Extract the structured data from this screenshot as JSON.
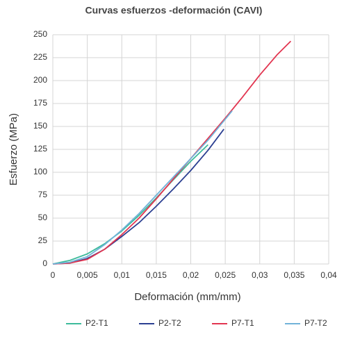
{
  "chart_data": {
    "type": "line",
    "title": "Curvas esfuerzos -deformación (CAVI)",
    "x_label": "Deformación (mm/mm)",
    "y_label": "Esfuerzo (MPa)",
    "xlim": [
      0,
      0.04
    ],
    "ylim": [
      0,
      250
    ],
    "xticks": [
      0,
      {
        "value": 0.005,
        "label": "0,005"
      },
      {
        "value": 0.01,
        "label": "0,01"
      },
      {
        "value": 0.015,
        "label": "0,015"
      },
      {
        "value": 0.02,
        "label": "0,02"
      },
      {
        "value": 0.025,
        "label": "0,025"
      },
      {
        "value": 0.03,
        "label": "0,03"
      },
      {
        "value": 0.035,
        "label": "0,035"
      },
      {
        "value": 0.04,
        "label": "0,04"
      }
    ],
    "yticks": [
      0,
      25,
      50,
      75,
      100,
      125,
      150,
      175,
      200,
      225,
      250
    ],
    "grid": true,
    "legend": "bottom",
    "series": [
      {
        "name": "P2-T1",
        "color": "#3dbb9b",
        "x": [
          0,
          0.0025,
          0.005,
          0.0075,
          0.01,
          0.0125,
          0.015,
          0.0175,
          0.02,
          0.0225
        ],
        "values": [
          0,
          4,
          11,
          22,
          36,
          53,
          72,
          92,
          112,
          130
        ]
      },
      {
        "name": "P2-T2",
        "color": "#2b3f91",
        "x": [
          0,
          0.0025,
          0.005,
          0.0075,
          0.01,
          0.0125,
          0.015,
          0.0175,
          0.02,
          0.0225,
          0.0248
        ],
        "values": [
          0,
          1,
          6,
          16,
          30,
          45,
          63,
          82,
          102,
          124,
          147
        ]
      },
      {
        "name": "P7-T1",
        "color": "#e23550",
        "x": [
          0,
          0.0025,
          0.005,
          0.0075,
          0.01,
          0.0125,
          0.015,
          0.0175,
          0.02,
          0.0225,
          0.025,
          0.0275,
          0.03,
          0.0325,
          0.0345
        ],
        "values": [
          0,
          1,
          5,
          16,
          32,
          50,
          71,
          93,
          115,
          137,
          159,
          182,
          206,
          228,
          243
        ]
      },
      {
        "name": "P7-T2",
        "color": "#71b3d9",
        "x": [
          0,
          0.0025,
          0.005,
          0.0075,
          0.01,
          0.0125,
          0.015,
          0.0175,
          0.02,
          0.0225,
          0.026
        ],
        "values": [
          0,
          2,
          8,
          21,
          37,
          55,
          75,
          95,
          115,
          135,
          167
        ]
      }
    ]
  }
}
